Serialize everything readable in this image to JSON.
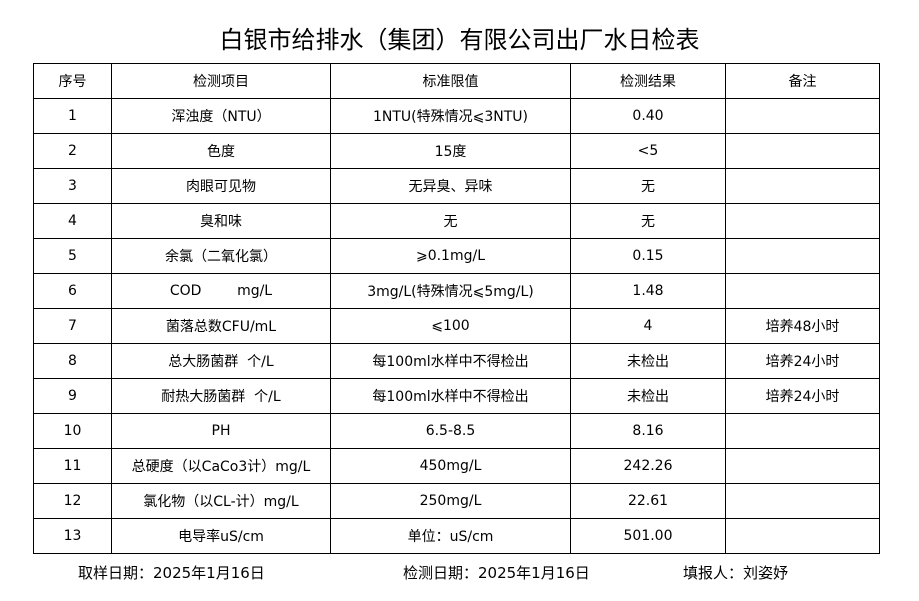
{
  "header": {
    "title": "白银市给排水（集团）有限公司出厂水日检表"
  },
  "table": {
    "columns": [
      "序号",
      "检测项目",
      "标准限值",
      "检测结果",
      "备注"
    ],
    "rows": [
      [
        "1",
        "浑浊度（NTU）",
        "1NTU(特殊情况⩽3NTU)",
        "0.40",
        ""
      ],
      [
        "2",
        "色度",
        "15度",
        "<5",
        ""
      ],
      [
        "3",
        "肉眼可见物",
        "无异臭、异味",
        "无",
        ""
      ],
      [
        "4",
        "臭和味",
        "无",
        "无",
        ""
      ],
      [
        "5",
        "余氯（二氧化氯）",
        "⩾0.1mg/L",
        "0.15",
        ""
      ],
      [
        "6",
        "COD        mg/L",
        "3mg/L(特殊情况⩽5mg/L)",
        "1.48",
        ""
      ],
      [
        "7",
        "菌落总数CFU/mL",
        "⩽100",
        "4",
        "培养48小时"
      ],
      [
        "8",
        "总大肠菌群  个/L",
        "每100ml水样中不得检出",
        "未检出",
        "培养24小时"
      ],
      [
        "9",
        "耐热大肠菌群  个/L",
        "每100ml水样中不得检出",
        "未检出",
        "培养24小时"
      ],
      [
        "10",
        "PH",
        "6.5-8.5",
        "8.16",
        ""
      ],
      [
        "11",
        "总硬度（以CaCo3计）mg/L",
        "450mg/L",
        "242.26",
        ""
      ],
      [
        "12",
        "氯化物（以CL-计）mg/L",
        "250mg/L",
        "22.61",
        ""
      ],
      [
        "13",
        "电导率uS/cm",
        "单位：uS/cm",
        "501.00",
        ""
      ]
    ]
  },
  "footer": {
    "sample_date": "取样日期：2025年1月16日",
    "test_date": "检测日期：2025年1月16日",
    "reporter": "填报人：刘姿妤"
  }
}
